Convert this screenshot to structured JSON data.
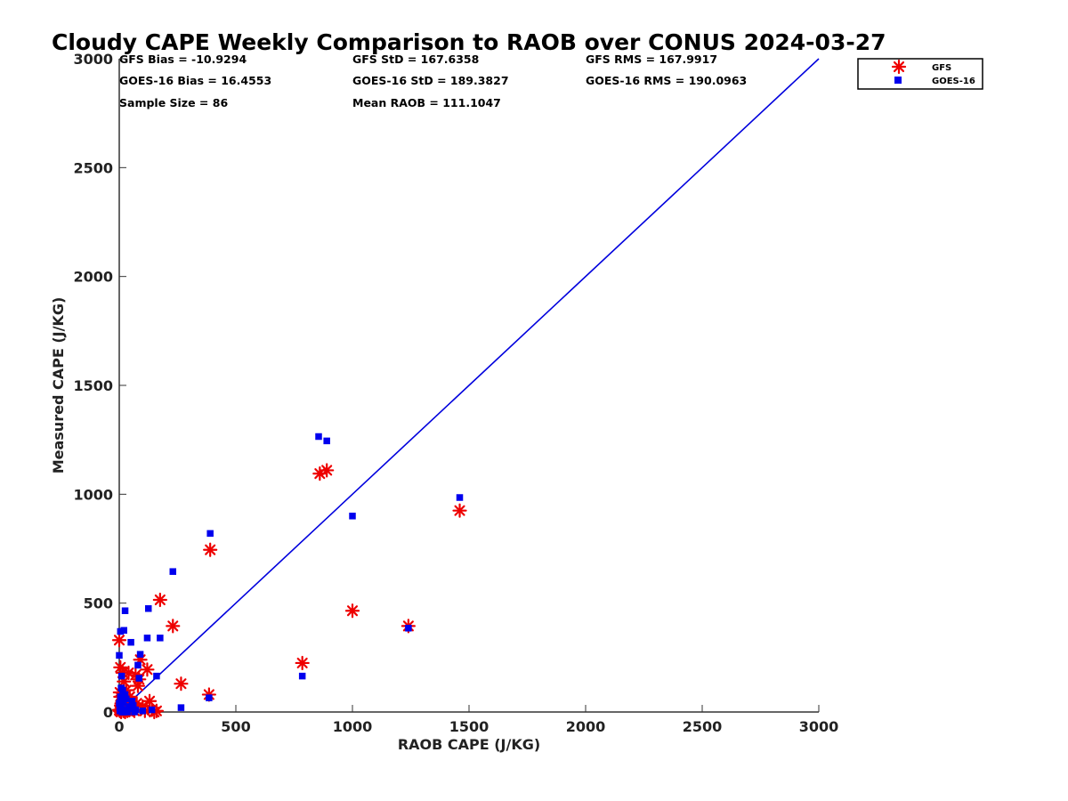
{
  "chart_data": {
    "type": "scatter",
    "title": "Cloudy CAPE Weekly Comparison to RAOB over CONUS 2024-03-27",
    "xlabel": "RAOB CAPE (J/KG)",
    "ylabel": "Measured CAPE (J/KG)",
    "xlim": [
      0,
      3000
    ],
    "ylim": [
      0,
      3000
    ],
    "xticks": [
      0,
      500,
      1000,
      1500,
      2000,
      2500,
      3000
    ],
    "yticks": [
      0,
      500,
      1000,
      1500,
      2000,
      2500,
      3000
    ],
    "grid": false,
    "legend_position": "top-right",
    "stats": [
      [
        "GFS Bias = -10.9294",
        "GFS StD = 167.6358",
        "GFS RMS = 167.9917"
      ],
      [
        "GOES-16 Bias = 16.4553",
        "GOES-16 StD = 189.3827",
        "GOES-16 RMS = 190.0963"
      ],
      [
        "Sample Size = 86",
        "Mean RAOB = 111.1047",
        ""
      ]
    ],
    "reference_line": {
      "x": [
        0,
        3000
      ],
      "y": [
        0,
        3000
      ],
      "color": "#0000dd"
    },
    "series": [
      {
        "name": "GFS",
        "marker": "asterisk",
        "color": "#ee0000",
        "points": [
          [
            0,
            330
          ],
          [
            5,
            205
          ],
          [
            10,
            15
          ],
          [
            15,
            180
          ],
          [
            20,
            140
          ],
          [
            25,
            60
          ],
          [
            30,
            100
          ],
          [
            5,
            70
          ],
          [
            10,
            40
          ],
          [
            20,
            20
          ],
          [
            35,
            5
          ],
          [
            40,
            180
          ],
          [
            45,
            70
          ],
          [
            50,
            30
          ],
          [
            60,
            10
          ],
          [
            70,
            170
          ],
          [
            75,
            40
          ],
          [
            80,
            120
          ],
          [
            85,
            150
          ],
          [
            90,
            240
          ],
          [
            120,
            195
          ],
          [
            130,
            50
          ],
          [
            140,
            10
          ],
          [
            160,
            5
          ],
          [
            175,
            515
          ],
          [
            230,
            395
          ],
          [
            265,
            130
          ],
          [
            385,
            80
          ],
          [
            390,
            745
          ],
          [
            785,
            225
          ],
          [
            860,
            1095
          ],
          [
            890,
            1110
          ],
          [
            1000,
            465
          ],
          [
            1240,
            395
          ],
          [
            1460,
            925
          ],
          [
            0,
            10
          ],
          [
            2,
            5
          ],
          [
            8,
            0
          ],
          [
            12,
            30
          ],
          [
            18,
            5
          ],
          [
            25,
            0
          ],
          [
            30,
            15
          ],
          [
            3,
            90
          ],
          [
            15,
            55
          ],
          [
            40,
            10
          ],
          [
            55,
            45
          ],
          [
            65,
            5
          ],
          [
            100,
            25
          ],
          [
            110,
            5
          ],
          [
            150,
            0
          ]
        ]
      },
      {
        "name": "GOES-16",
        "marker": "square",
        "color": "#0000ee",
        "points": [
          [
            0,
            260
          ],
          [
            5,
            370
          ],
          [
            10,
            165
          ],
          [
            20,
            375
          ],
          [
            25,
            465
          ],
          [
            15,
            100
          ],
          [
            5,
            70
          ],
          [
            10,
            30
          ],
          [
            15,
            10
          ],
          [
            20,
            0
          ],
          [
            30,
            60
          ],
          [
            40,
            25
          ],
          [
            45,
            15
          ],
          [
            50,
            320
          ],
          [
            60,
            30
          ],
          [
            70,
            10
          ],
          [
            80,
            215
          ],
          [
            85,
            155
          ],
          [
            90,
            265
          ],
          [
            120,
            340
          ],
          [
            125,
            475
          ],
          [
            140,
            10
          ],
          [
            160,
            165
          ],
          [
            175,
            340
          ],
          [
            230,
            645
          ],
          [
            265,
            20
          ],
          [
            385,
            65
          ],
          [
            390,
            820
          ],
          [
            785,
            165
          ],
          [
            855,
            1265
          ],
          [
            890,
            1245
          ],
          [
            1000,
            900
          ],
          [
            1240,
            385
          ],
          [
            1460,
            985
          ],
          [
            0,
            40
          ],
          [
            3,
            5
          ],
          [
            8,
            110
          ],
          [
            12,
            0
          ],
          [
            25,
            80
          ],
          [
            35,
            0
          ],
          [
            55,
            50
          ],
          [
            65,
            0
          ],
          [
            100,
            5
          ],
          [
            2,
            20
          ],
          [
            18,
            45
          ]
        ]
      }
    ]
  }
}
